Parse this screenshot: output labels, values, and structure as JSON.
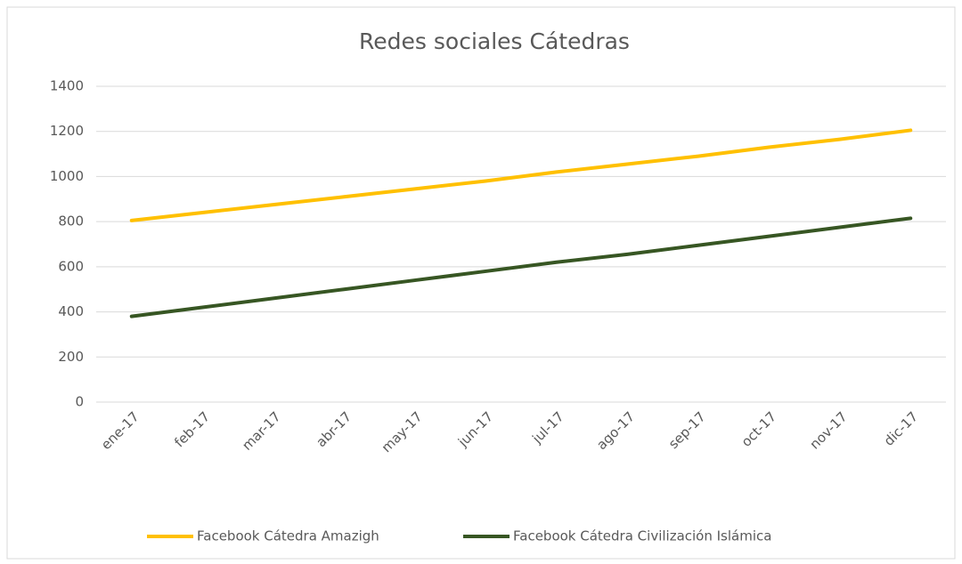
{
  "chart_data": {
    "type": "line",
    "title": "Redes sociales Cátedras",
    "categories": [
      "ene-17",
      "feb-17",
      "mar-17",
      "abr-17",
      "may-17",
      "jun-17",
      "jul-17",
      "ago-17",
      "sep-17",
      "oct-17",
      "nov-17",
      "dic-17"
    ],
    "series": [
      {
        "name": "Facebook Cátedra Amazigh",
        "color": "#ffc000",
        "values": [
          805,
          840,
          875,
          910,
          945,
          980,
          1020,
          1055,
          1090,
          1130,
          1165,
          1205
        ]
      },
      {
        "name": "Facebook Cátedra Civilización Islámica",
        "color": "#375623",
        "values": [
          380,
          420,
          460,
          500,
          540,
          580,
          620,
          655,
          695,
          735,
          775,
          815
        ]
      }
    ],
    "ylim": [
      0,
      1400
    ],
    "yticks": [
      0,
      200,
      400,
      600,
      800,
      1000,
      1200,
      1400
    ],
    "grid": true,
    "legend": "bottom"
  }
}
